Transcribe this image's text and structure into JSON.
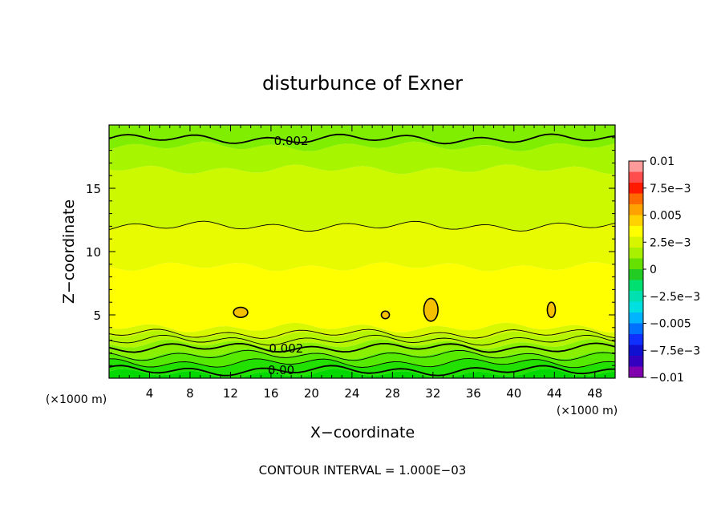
{
  "chart_data": {
    "type": "contour",
    "title": "disturbunce of Exner",
    "xlabel": "X−coordinate",
    "ylabel": "Z−coordinate",
    "x_unit_left": "(×1000 m)",
    "x_unit_right": "(×1000 m)",
    "footer": "CONTOUR INTERVAL = 1.000E−03",
    "xlim": [
      0,
      50
    ],
    "ylim": [
      0,
      20
    ],
    "x_ticks": [
      4,
      8,
      12,
      16,
      20,
      24,
      28,
      32,
      36,
      40,
      44,
      48
    ],
    "x_tick_labels": [
      "4",
      "8",
      "12",
      "16",
      "20",
      "24",
      "28",
      "32",
      "36",
      "40",
      "44",
      "48"
    ],
    "y_ticks": [
      5,
      10,
      15
    ],
    "y_tick_labels": [
      "5",
      "10",
      "15"
    ],
    "contour_labels": [
      {
        "text": "0.002",
        "x": 18,
        "z": 18.8
      },
      {
        "text": "0.002",
        "x": 17.5,
        "z": 2.4
      },
      {
        "text": "0.00",
        "x": 17,
        "z": 0.7
      }
    ],
    "colorbar": {
      "labels": [
        "0.01",
        "7.5e−3",
        "0.005",
        "2.5e−3",
        "0",
        "−2.5e−3",
        "−0.005",
        "−7.5e−3",
        "−0.01"
      ],
      "colors": [
        "#ff9a9a",
        "#ff4d4d",
        "#ff1a00",
        "#ff6a00",
        "#ffa200",
        "#ffd200",
        "#ffff00",
        "#d8f500",
        "#a8f000",
        "#66e000",
        "#22cc22",
        "#00e070",
        "#00e0b0",
        "#00e0e0",
        "#00b4ff",
        "#0070ff",
        "#1030ff",
        "#1010d0",
        "#3300c0",
        "#8000b0"
      ]
    },
    "bands": [
      {
        "from": 0,
        "to": 0.35,
        "color": "#00d800"
      },
      {
        "from": 0.35,
        "to": 1.2,
        "color": "#22e000"
      },
      {
        "from": 1.2,
        "to": 1.9,
        "color": "#55ea00"
      },
      {
        "from": 1.9,
        "to": 2.7,
        "color": "#88f000"
      },
      {
        "from": 2.7,
        "to": 3.4,
        "color": "#b5f500"
      },
      {
        "from": 3.4,
        "to": 4.0,
        "color": "#d8f800"
      },
      {
        "from": 4.0,
        "to": 8.8,
        "color": "#ffff00"
      },
      {
        "from": 8.8,
        "to": 12.0,
        "color": "#e8fb00"
      },
      {
        "from": 12.0,
        "to": 16.5,
        "color": "#ccf800"
      },
      {
        "from": 16.5,
        "to": 18.3,
        "color": "#a8f500"
      },
      {
        "from": 18.3,
        "to": 20,
        "color": "#80ee00"
      }
    ],
    "contour_lines": [
      {
        "z": 18.9,
        "bold": true
      },
      {
        "z": 12.0,
        "bold": false
      },
      {
        "z": 3.5,
        "bold": false
      },
      {
        "z": 3.0,
        "bold": false
      },
      {
        "z": 2.4,
        "bold": true
      },
      {
        "z": 1.8,
        "bold": false
      },
      {
        "z": 1.2,
        "bold": false
      },
      {
        "z": 0.6,
        "bold": true
      }
    ],
    "closed_contours": [
      {
        "x": 13.0,
        "z": 5.2,
        "rx": 0.7,
        "rz": 0.4
      },
      {
        "x": 27.3,
        "z": 5.0,
        "rx": 0.4,
        "rz": 0.3
      },
      {
        "x": 31.8,
        "z": 5.4,
        "rx": 0.7,
        "rz": 0.9
      },
      {
        "x": 43.7,
        "z": 5.4,
        "rx": 0.4,
        "rz": 0.6
      }
    ]
  }
}
